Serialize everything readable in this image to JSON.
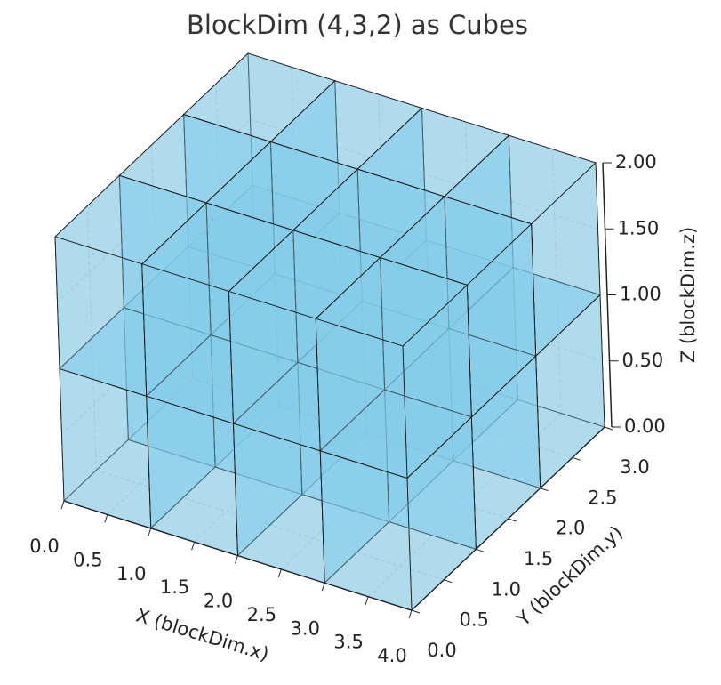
{
  "chart_data": {
    "type": "voxels",
    "title": "BlockDim (4,3,2) as Cubes",
    "dims": [
      4,
      3,
      2
    ],
    "color": "#87ceeb",
    "xlabel": "X (blockDim.x)",
    "ylabel": "Y (blockDim.y)",
    "zlabel": "Z (blockDim.z)",
    "xlim": [
      0,
      4
    ],
    "ylim": [
      0,
      3
    ],
    "zlim": [
      0,
      2
    ],
    "xticks": [
      {
        "value": 0,
        "label": "0.0"
      },
      {
        "value": 0.5,
        "label": "0.5"
      },
      {
        "value": 1,
        "label": "1.0"
      },
      {
        "value": 1.5,
        "label": "1.5"
      },
      {
        "value": 2,
        "label": "2.0"
      },
      {
        "value": 2.5,
        "label": "2.5"
      },
      {
        "value": 3,
        "label": "3.0"
      },
      {
        "value": 3.5,
        "label": "3.5"
      },
      {
        "value": 4,
        "label": "4.0"
      }
    ],
    "yticks": [
      {
        "value": 0,
        "label": "0.0"
      },
      {
        "value": 0.5,
        "label": "0.5"
      },
      {
        "value": 1,
        "label": "1.0"
      },
      {
        "value": 1.5,
        "label": "1.5"
      },
      {
        "value": 2,
        "label": "2.0"
      },
      {
        "value": 2.5,
        "label": "2.5"
      },
      {
        "value": 3,
        "label": "3.0"
      }
    ],
    "zticks": [
      {
        "value": 0,
        "label": "0.00"
      },
      {
        "value": 0.5,
        "label": "0.50"
      },
      {
        "value": 1,
        "label": "1.00"
      },
      {
        "value": 1.5,
        "label": "1.50"
      },
      {
        "value": 2,
        "label": "2.00"
      }
    ],
    "grid": true
  }
}
